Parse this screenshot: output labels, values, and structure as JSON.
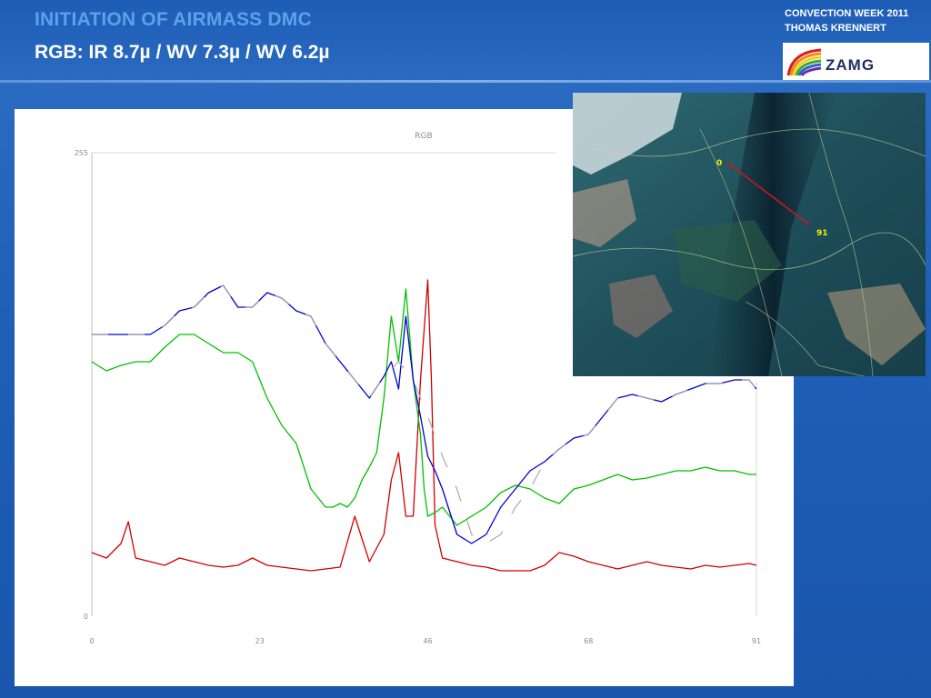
{
  "slide": {
    "title": "INITIATION OF AIRMASS DMC",
    "subtitle": "RGB: IR 8.7µ / WV 7.3µ / WV 6.2µ",
    "credits_line1": "CONVECTION WEEK 2011",
    "credits_line2": "THOMAS KRENNERT",
    "logo_text": "ZAMG"
  },
  "satellite_image": {
    "start_label": "0",
    "end_label": "91",
    "line_color": "#d01818",
    "label_color": "#f2f200"
  },
  "chart_data": {
    "type": "line",
    "title": "RGB",
    "xlabel": "",
    "ylabel": "",
    "xlim": [
      0,
      91
    ],
    "ylim": [
      0,
      255
    ],
    "y_tick_labels": [
      "0",
      "255"
    ],
    "x_tick_values": [
      0,
      23,
      46,
      68,
      91
    ],
    "x_tick_labels": [
      "0",
      "23",
      "46",
      "68",
      "91"
    ],
    "grid": false,
    "legend": "none",
    "series": [
      {
        "color": "#d00000",
        "x": [
          0,
          2,
          4,
          5,
          6,
          8,
          10,
          12,
          14,
          16,
          18,
          20,
          22,
          24,
          26,
          28,
          30,
          32,
          34,
          36,
          38,
          40,
          41,
          42,
          43,
          44,
          45,
          46,
          46.5,
          47,
          48,
          50,
          52,
          54,
          56,
          58,
          60,
          62,
          64,
          66,
          68,
          70,
          72,
          74,
          76,
          78,
          80,
          82,
          84,
          86,
          88,
          90,
          91
        ],
        "values": [
          35,
          32,
          40,
          52,
          32,
          30,
          28,
          32,
          30,
          28,
          27,
          28,
          32,
          28,
          27,
          26,
          25,
          26,
          27,
          55,
          30,
          45,
          75,
          90,
          55,
          55,
          130,
          185,
          130,
          50,
          32,
          30,
          28,
          27,
          25,
          25,
          25,
          28,
          35,
          33,
          30,
          28,
          26,
          28,
          30,
          28,
          27,
          26,
          28,
          27,
          28,
          29,
          28
        ]
      },
      {
        "color": "#00c000",
        "x": [
          0,
          2,
          4,
          6,
          8,
          10,
          12,
          14,
          16,
          18,
          20,
          22,
          24,
          26,
          28,
          30,
          32,
          33,
          34,
          35,
          36,
          37,
          38,
          39,
          40,
          41,
          42,
          43,
          44,
          45,
          45.5,
          46,
          47,
          48,
          50,
          52,
          54,
          56,
          58,
          60,
          62,
          64,
          66,
          68,
          70,
          72,
          74,
          76,
          78,
          80,
          82,
          84,
          86,
          88,
          90,
          91
        ],
        "values": [
          140,
          135,
          138,
          140,
          140,
          148,
          155,
          155,
          150,
          145,
          145,
          140,
          120,
          105,
          95,
          70,
          60,
          60,
          62,
          60,
          65,
          75,
          82,
          90,
          120,
          165,
          140,
          180,
          130,
          100,
          70,
          55,
          57,
          60,
          50,
          55,
          60,
          68,
          72,
          70,
          65,
          62,
          70,
          72,
          75,
          78,
          75,
          76,
          78,
          80,
          80,
          82,
          80,
          80,
          78,
          78
        ]
      },
      {
        "color": "#0000d0",
        "x": [
          0,
          2,
          4,
          6,
          8,
          10,
          12,
          14,
          16,
          18,
          20,
          22,
          24,
          26,
          28,
          30,
          32,
          34,
          36,
          38,
          40,
          41,
          42,
          43,
          44,
          45,
          46,
          47,
          48,
          50,
          52,
          54,
          56,
          58,
          60,
          62,
          64,
          66,
          68,
          70,
          72,
          74,
          76,
          78,
          80,
          82,
          84,
          86,
          88,
          90,
          91
        ],
        "values": [
          155,
          155,
          155,
          155,
          155,
          160,
          168,
          170,
          178,
          182,
          170,
          170,
          178,
          175,
          168,
          165,
          150,
          140,
          130,
          120,
          132,
          140,
          125,
          165,
          130,
          110,
          88,
          80,
          70,
          45,
          40,
          45,
          60,
          70,
          80,
          85,
          92,
          98,
          100,
          110,
          120,
          122,
          120,
          118,
          122,
          125,
          128,
          128,
          130,
          130,
          125
        ]
      },
      {
        "color": "#a8a8a8",
        "x": [
          0,
          2,
          4,
          6,
          8,
          10,
          12,
          14,
          16,
          18,
          20,
          22,
          24,
          26,
          28,
          30,
          32,
          34,
          36,
          38,
          40,
          42,
          44,
          46,
          48,
          50,
          52,
          54,
          56,
          58,
          60,
          62,
          64,
          66,
          68,
          70,
          72,
          74,
          76,
          78,
          80,
          82,
          84,
          86,
          88,
          90,
          91
        ],
        "values": [
          155,
          155,
          155,
          155,
          155,
          160,
          168,
          170,
          178,
          182,
          170,
          170,
          178,
          175,
          168,
          165,
          150,
          140,
          130,
          120,
          132,
          140,
          130,
          110,
          88,
          70,
          45,
          40,
          45,
          60,
          70,
          85,
          92,
          98,
          100,
          110,
          120,
          122,
          120,
          118,
          122,
          125,
          128,
          128,
          130,
          130,
          125
        ]
      }
    ]
  }
}
